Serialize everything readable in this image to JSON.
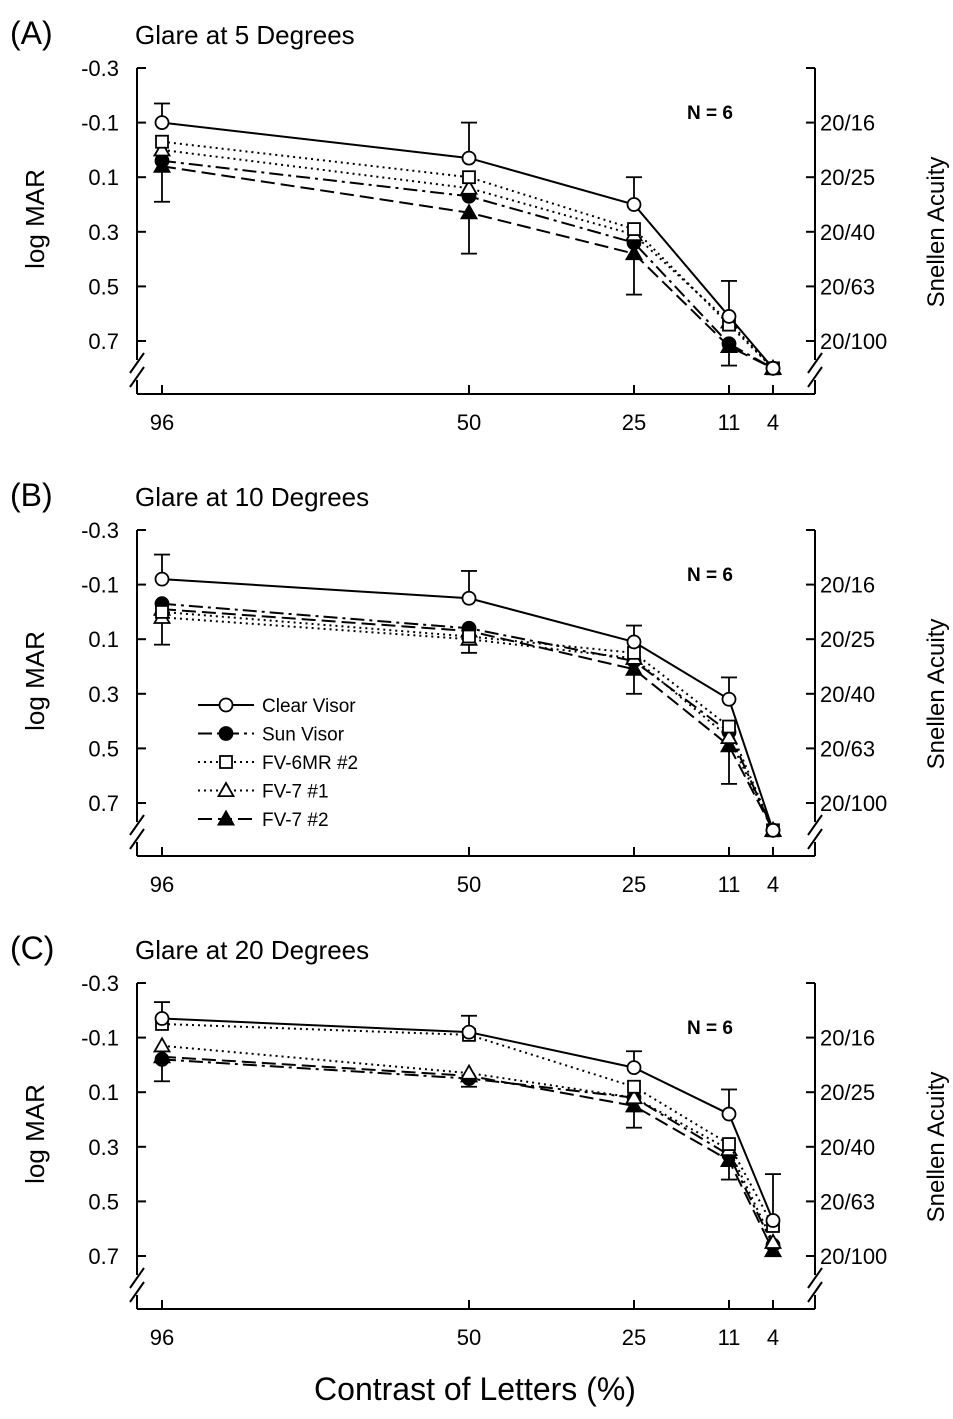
{
  "figure": {
    "xlabel": "Contrast of Letters (%)"
  },
  "legend": [
    {
      "name": "Clear Visor",
      "marker": "circle-open",
      "dash": "solid"
    },
    {
      "name": "Sun Visor",
      "marker": "circle-filled",
      "dash": "dashdot"
    },
    {
      "name": "FV-6MR #2",
      "marker": "square-open",
      "dash": "dotted"
    },
    {
      "name": "FV-7 #1",
      "marker": "triangle-open",
      "dash": "dotted"
    },
    {
      "name": "FV-7 #2",
      "marker": "triangle-filled",
      "dash": "longdash"
    }
  ],
  "chart_data": [
    {
      "type": "line",
      "panel": "(A)",
      "title": "Glare at 5 Degrees",
      "n_label": "N = 6",
      "xlabel": "Contrast of Letters (%)",
      "ylabel": "log MAR",
      "ylabel_right": "Snellen Acuity",
      "x": [
        "96",
        "50",
        "25",
        "11",
        "4"
      ],
      "y_ticks": [
        "-0.3",
        "-0.1",
        "0.1",
        "0.3",
        "0.5",
        "0.7"
      ],
      "y_right_ticks": [
        {
          "label": "20/16",
          "logmar": -0.1
        },
        {
          "label": "20/25",
          "logmar": 0.1
        },
        {
          "label": "20/40",
          "logmar": 0.3
        },
        {
          "label": "20/63",
          "logmar": 0.5
        },
        {
          "label": "20/100",
          "logmar": 0.7
        }
      ],
      "ylim": [
        -0.3,
        0.7
      ],
      "y_inverted": true,
      "series": [
        {
          "name": "Clear Visor",
          "values": [
            -0.1,
            0.03,
            0.2,
            0.61,
            0.8
          ],
          "error": [
            0.07,
            0.13,
            0.1,
            0.13,
            null
          ]
        },
        {
          "name": "Sun Visor",
          "values": [
            0.04,
            0.17,
            0.34,
            0.71,
            0.8
          ]
        },
        {
          "name": "FV-6MR #2",
          "values": [
            -0.03,
            0.1,
            0.29,
            0.64,
            0.8
          ]
        },
        {
          "name": "FV-7 #1",
          "values": [
            0.0,
            0.14,
            0.31,
            0.63,
            0.8
          ]
        },
        {
          "name": "FV-7 #2",
          "values": [
            0.06,
            0.23,
            0.38,
            0.72,
            0.8
          ],
          "error": [
            0.13,
            0.15,
            0.15,
            0.07,
            null
          ]
        }
      ]
    },
    {
      "type": "line",
      "panel": "(B)",
      "title": "Glare at 10 Degrees",
      "n_label": "N = 6",
      "xlabel": "Contrast of Letters (%)",
      "ylabel": "log MAR",
      "ylabel_right": "Snellen Acuity",
      "x": [
        "96",
        "50",
        "25",
        "11",
        "4"
      ],
      "y_ticks": [
        "-0.3",
        "-0.1",
        "0.1",
        "0.3",
        "0.5",
        "0.7"
      ],
      "y_right_ticks": [
        {
          "label": "20/16",
          "logmar": -0.1
        },
        {
          "label": "20/25",
          "logmar": 0.1
        },
        {
          "label": "20/40",
          "logmar": 0.3
        },
        {
          "label": "20/63",
          "logmar": 0.5
        },
        {
          "label": "20/100",
          "logmar": 0.7
        }
      ],
      "ylim": [
        -0.3,
        0.7
      ],
      "y_inverted": true,
      "series": [
        {
          "name": "Clear Visor",
          "values": [
            -0.12,
            -0.05,
            0.11,
            0.32,
            0.8
          ],
          "error": [
            0.09,
            0.1,
            0.06,
            0.08,
            null
          ]
        },
        {
          "name": "Sun Visor",
          "values": [
            -0.03,
            0.06,
            0.18,
            0.44,
            0.8
          ]
        },
        {
          "name": "FV-6MR #2",
          "values": [
            0.0,
            0.09,
            0.15,
            0.42,
            0.8
          ]
        },
        {
          "name": "FV-7 #1",
          "values": [
            0.02,
            0.1,
            0.17,
            0.46,
            0.8
          ]
        },
        {
          "name": "FV-7 #2",
          "values": [
            -0.01,
            0.07,
            0.21,
            0.49,
            0.8
          ],
          "error": [
            0.13,
            0.08,
            0.09,
            0.14,
            null
          ]
        }
      ]
    },
    {
      "type": "line",
      "panel": "(C)",
      "title": "Glare at 20 Degrees",
      "n_label": "N = 6",
      "xlabel": "Contrast of Letters (%)",
      "ylabel": "log MAR",
      "ylabel_right": "Snellen Acuity",
      "x": [
        "96",
        "50",
        "25",
        "11",
        "4"
      ],
      "y_ticks": [
        "-0.3",
        "-0.1",
        "0.1",
        "0.3",
        "0.5",
        "0.7"
      ],
      "y_right_ticks": [
        {
          "label": "20/16",
          "logmar": -0.1
        },
        {
          "label": "20/25",
          "logmar": 0.1
        },
        {
          "label": "20/40",
          "logmar": 0.3
        },
        {
          "label": "20/63",
          "logmar": 0.5
        },
        {
          "label": "20/100",
          "logmar": 0.7
        }
      ],
      "ylim": [
        -0.3,
        0.7
      ],
      "y_inverted": true,
      "series": [
        {
          "name": "Clear Visor",
          "values": [
            -0.17,
            -0.12,
            0.01,
            0.18,
            0.57
          ],
          "error": [
            0.06,
            0.06,
            0.06,
            0.09,
            0.17
          ]
        },
        {
          "name": "Sun Visor",
          "values": [
            -0.02,
            0.05,
            0.12,
            0.33,
            0.66
          ]
        },
        {
          "name": "FV-6MR #2",
          "values": [
            -0.15,
            -0.11,
            0.08,
            0.29,
            0.59
          ]
        },
        {
          "name": "FV-7 #1",
          "values": [
            -0.07,
            0.03,
            0.12,
            0.31,
            0.65
          ]
        },
        {
          "name": "FV-7 #2",
          "values": [
            -0.03,
            0.04,
            0.15,
            0.35,
            0.68
          ],
          "error": [
            0.09,
            0.04,
            0.08,
            0.07,
            null
          ]
        }
      ]
    }
  ]
}
